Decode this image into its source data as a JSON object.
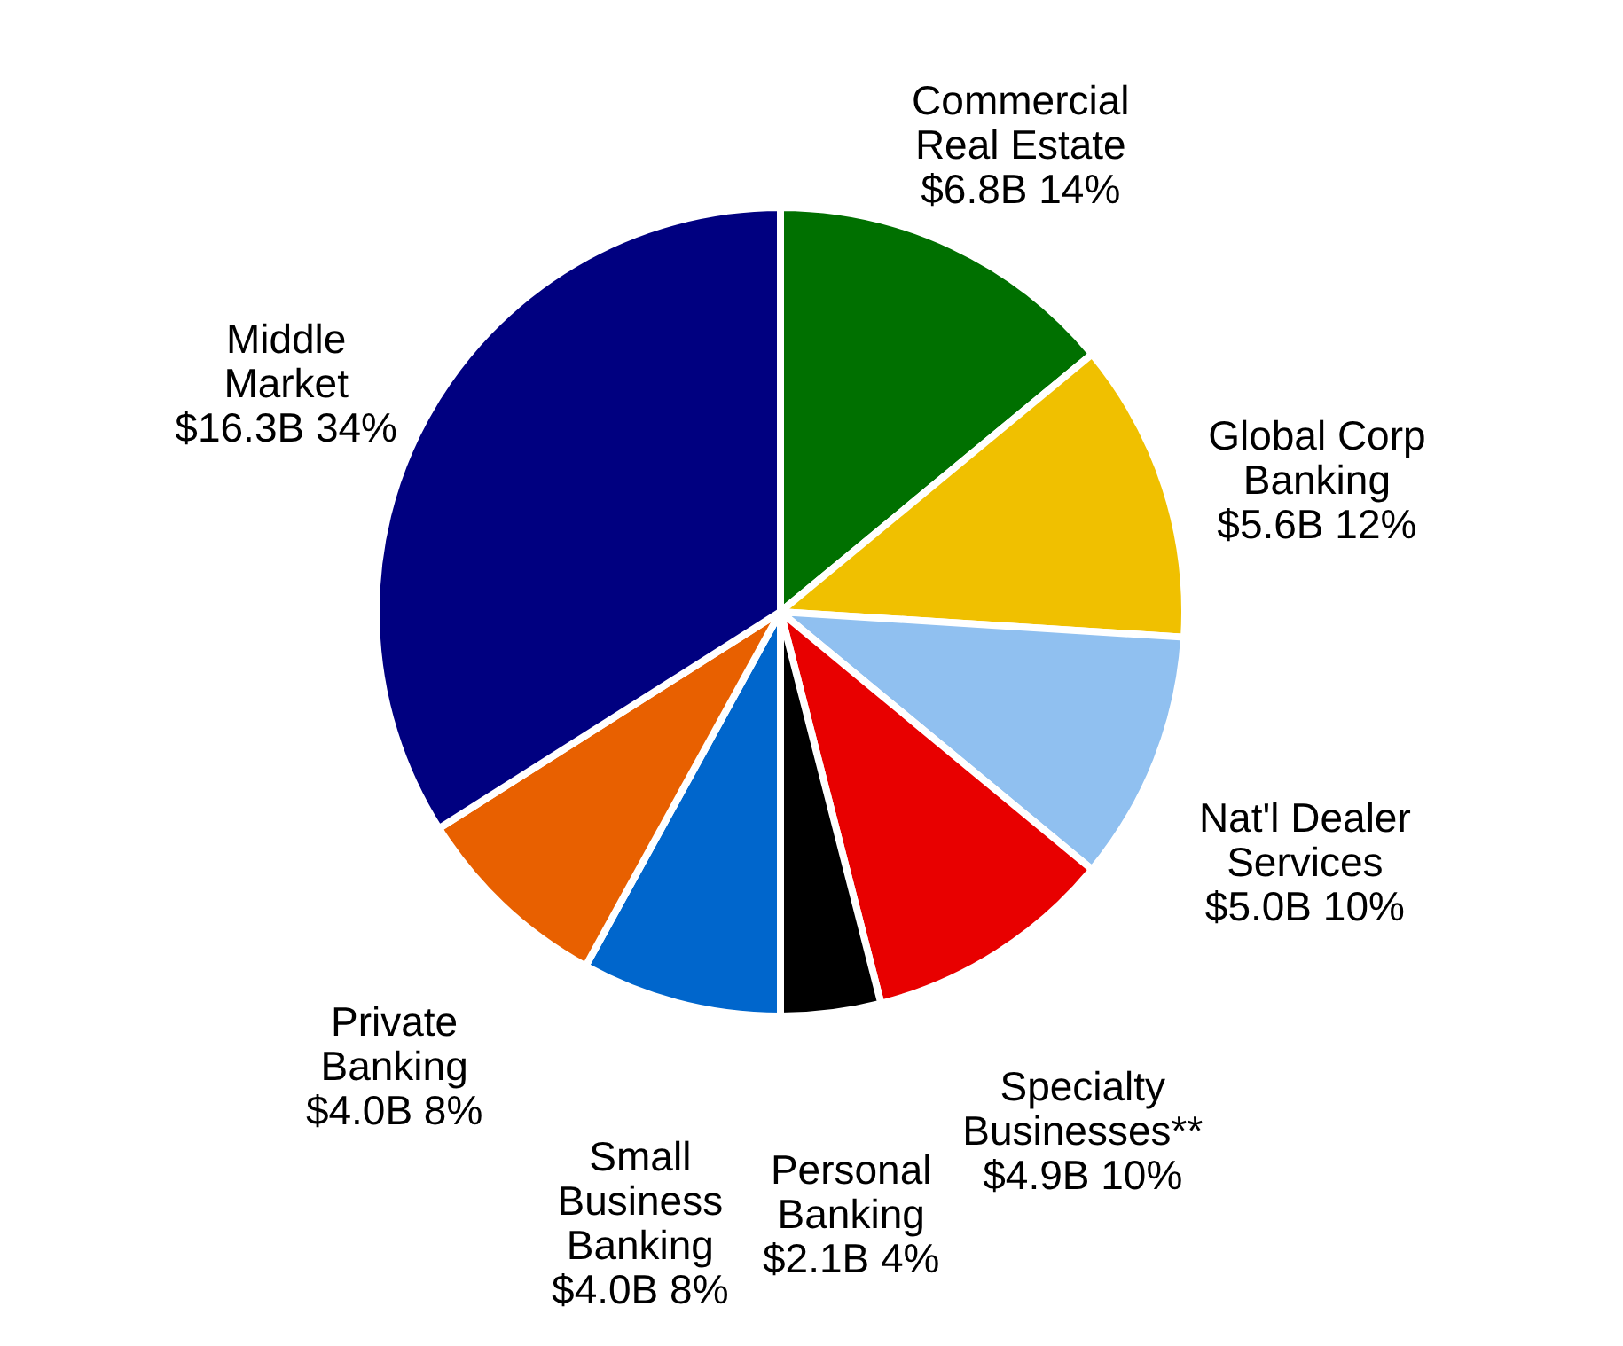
{
  "chart_data": {
    "type": "pie",
    "categories": [
      "Commercial\nReal Estate",
      "Global Corp\nBanking",
      "Nat'l Dealer\nServices",
      "Specialty\nBusinesses**",
      "Personal\nBanking",
      "Small\nBusiness\nBanking",
      "Private\nBanking",
      "Middle\nMarket"
    ],
    "values": [
      14,
      12,
      10,
      10,
      4,
      8,
      8,
      34
    ],
    "value_labels": [
      "$6.8B  14%",
      "$5.6B  12%",
      "$5.0B  10%",
      "$4.9B  10%",
      "$2.1B  4%",
      "$4.0B  8%",
      "$4.0B  8%",
      "$16.3B  34%"
    ],
    "colors": [
      "#007000",
      "#f0c000",
      "#90c0f0",
      "#e80000",
      "#000000",
      "#0066cc",
      "#e86000",
      "#000080"
    ]
  }
}
